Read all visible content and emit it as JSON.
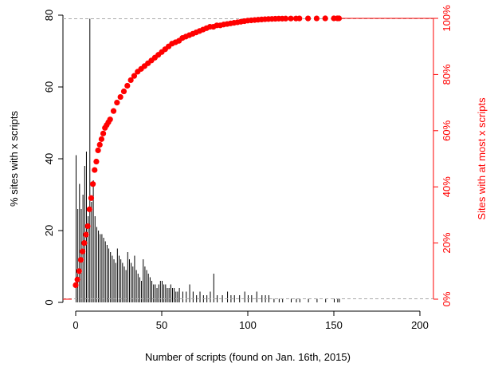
{
  "chart_data": {
    "type": "bar+scatter",
    "xlabel": "Number of scripts (found on Jan. 16th, 2015)",
    "ylabel_left": "% sites with x scripts",
    "ylabel_right": "Sites with at most x scripts",
    "xlim": [
      0,
      200
    ],
    "ylim_left": [
      0,
      80
    ],
    "ylim_right": [
      0,
      100
    ],
    "x_ticks": [
      "0",
      "50",
      "100",
      "150",
      "200"
    ],
    "y_left_ticks": [
      "0",
      "20",
      "40",
      "60",
      "80"
    ],
    "y_right_ticks": [
      "0%",
      "20%",
      "40%",
      "60%",
      "80%",
      "100%"
    ],
    "bar_color": "#000000",
    "point_color": "#ff0000",
    "right_axis_color": "#ff0000",
    "reference_lines": {
      "max_percent_value": 79,
      "min_percent_value": 1,
      "dashed_color": "#aaaaaa",
      "solid_color": "#ff0000"
    },
    "histogram": {
      "x": [
        0,
        1,
        2,
        3,
        4,
        5,
        6,
        7,
        8,
        9,
        10,
        11,
        12,
        13,
        14,
        15,
        16,
        17,
        18,
        19,
        20,
        21,
        22,
        23,
        24,
        25,
        26,
        27,
        28,
        29,
        30,
        31,
        32,
        33,
        34,
        35,
        36,
        37,
        38,
        39,
        40,
        41,
        42,
        43,
        44,
        45,
        46,
        47,
        48,
        49,
        50,
        51,
        52,
        53,
        54,
        55,
        56,
        57,
        58,
        59,
        60,
        62,
        64,
        66,
        68,
        70,
        72,
        74,
        76,
        78,
        80,
        82,
        85,
        88,
        90,
        92,
        95,
        98,
        100,
        102,
        105,
        108,
        110,
        112,
        115,
        118,
        120,
        125,
        128,
        130,
        135,
        140,
        145,
        150,
        152,
        153
      ],
      "values": [
        41,
        26,
        33,
        26,
        30,
        38,
        42,
        24,
        79,
        28,
        34,
        24,
        21,
        20,
        19,
        19,
        18,
        17,
        16,
        15,
        14,
        13,
        12,
        11,
        15,
        13,
        12,
        11,
        10,
        9,
        14,
        12,
        11,
        10,
        13,
        9,
        8,
        7,
        6,
        12,
        10,
        9,
        8,
        7,
        6,
        5,
        5,
        4,
        5,
        6,
        6,
        5,
        5,
        4,
        4,
        5,
        4,
        4,
        3,
        3,
        4,
        3,
        3,
        5,
        3,
        2,
        3,
        2,
        2,
        3,
        8,
        2,
        2,
        3,
        2,
        2,
        2,
        3,
        2,
        2,
        3,
        2,
        2,
        2,
        1,
        1,
        1,
        1,
        1,
        1,
        1,
        1,
        1,
        1,
        1,
        1
      ]
    },
    "cumulative": {
      "x": [
        0,
        1,
        2,
        3,
        4,
        5,
        6,
        7,
        8,
        9,
        10,
        11,
        12,
        13,
        14,
        15,
        16,
        17,
        18,
        19,
        20,
        22,
        24,
        26,
        28,
        30,
        32,
        34,
        36,
        38,
        40,
        42,
        44,
        46,
        48,
        50,
        52,
        54,
        56,
        58,
        60,
        62,
        64,
        66,
        68,
        70,
        72,
        74,
        76,
        78,
        80,
        82,
        84,
        86,
        88,
        90,
        92,
        94,
        96,
        98,
        100,
        102,
        104,
        106,
        108,
        110,
        112,
        114,
        116,
        118,
        120,
        122,
        125,
        128,
        130,
        135,
        140,
        145,
        150,
        152,
        153
      ],
      "values_percent": [
        5,
        7,
        10,
        14,
        17,
        20,
        23,
        26,
        32,
        36,
        41,
        46,
        49,
        53,
        55,
        57,
        59,
        61,
        62,
        63,
        64,
        67,
        70,
        72,
        74,
        76,
        78,
        79.5,
        81,
        82,
        83,
        84,
        85,
        86,
        87,
        88,
        89,
        90,
        91,
        91.5,
        92,
        93,
        93.5,
        94,
        94.5,
        95,
        95.5,
        96,
        96.5,
        97,
        97,
        97.5,
        97.5,
        97.8,
        98,
        98.2,
        98.4,
        98.6,
        98.8,
        99,
        99.2,
        99.3,
        99.4,
        99.5,
        99.6,
        99.7,
        99.75,
        99.8,
        99.85,
        99.9,
        99.9,
        99.92,
        99.94,
        99.95,
        99.96,
        99.97,
        99.98,
        99.99,
        100,
        100,
        100
      ]
    }
  }
}
